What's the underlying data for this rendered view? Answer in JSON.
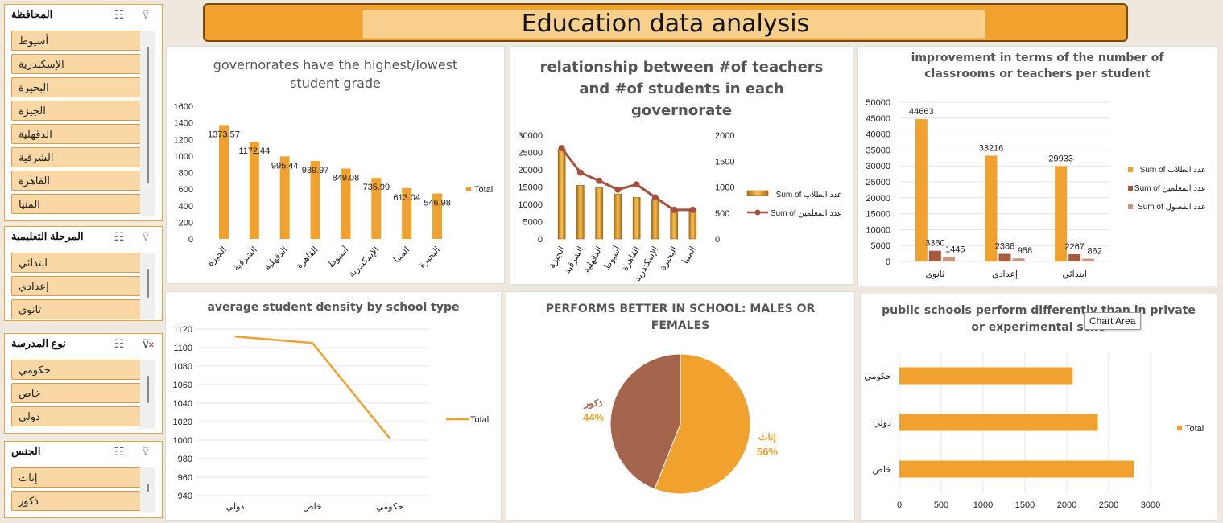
{
  "dashboard": {
    "title": "Education data analysis"
  },
  "slicers": [
    {
      "title": "المحافظة",
      "items": [
        "أسيوط",
        "الإسكندرية",
        "البحيرة",
        "الجيزة",
        "الدقهلية",
        "الشرقية",
        "القاهرة",
        "المنيا"
      ]
    },
    {
      "title": "المرحلة التعليمية",
      "items": [
        "ابتدائي",
        "إعدادي",
        "ثانوي"
      ]
    },
    {
      "title": "نوع المدرسة",
      "items": [
        "حكومي",
        "خاص",
        "دولي"
      ],
      "filter_active": true
    },
    {
      "title": "الجنس",
      "items": [
        "إناث",
        "ذكور"
      ]
    }
  ],
  "tooltip": {
    "text": "Chart Area"
  },
  "charts": {
    "grades": {
      "title_line1": "governorates have the highest/lowest",
      "title_line2": "student grade",
      "legend": "Total",
      "y_ticks": [
        "0",
        "200",
        "400",
        "600",
        "800",
        "1000",
        "1200",
        "1400",
        "1600"
      ]
    },
    "teachers": {
      "title_line1": "relationship between #of teachers",
      "title_line2": "and #of students in each",
      "title_line3": "governorate",
      "legend_students": "Sum of عدد الطلاب",
      "legend_teachers": "Sum of عدد المعلمين",
      "y_left_ticks": [
        "0",
        "5000",
        "10000",
        "15000",
        "20000",
        "25000",
        "30000"
      ],
      "y_right_ticks": [
        "0",
        "500",
        "1000",
        "1500",
        "2000"
      ]
    },
    "classrooms": {
      "title_line1": "improvement in terms of the number of",
      "title_line2": "classrooms or teachers per student",
      "legend1": "Sum of عدد الطلاب",
      "legend2": "Sum of عدد المعلمين",
      "legend3": "Sum of عدد الفصول",
      "y_ticks": [
        "0",
        "5000",
        "10000",
        "15000",
        "20000",
        "25000",
        "30000",
        "35000",
        "40000",
        "45000",
        "50000"
      ]
    },
    "density": {
      "title": "average student density by school type",
      "legend": "Total",
      "y_ticks": [
        "940",
        "960",
        "980",
        "1000",
        "1020",
        "1040",
        "1060",
        "1080",
        "1100",
        "1120"
      ]
    },
    "gender": {
      "title_line1": "PERFORMS BETTER IN SCHOOL: MALES OR",
      "title_line2": "FEMALES",
      "label_male": "ذكور",
      "pct_male": "44%",
      "label_female": "إناث",
      "pct_female": "56%"
    },
    "schooltype": {
      "title_line1": "public schools perform differently than in private",
      "title_line2": "or experimental scho",
      "legend": "Total",
      "x_ticks": [
        "0",
        "500",
        "1000",
        "1500",
        "2000",
        "2500",
        "3000"
      ]
    }
  },
  "chart_data": [
    {
      "type": "bar",
      "title": "governorates have the highest/lowest student grade",
      "categories": [
        "الجيزة",
        "الشرقية",
        "الدقهلية",
        "القاهرة",
        "أسيوط",
        "الإسكندرية",
        "المنيا",
        "البحيرة"
      ],
      "values": [
        1373.57,
        1172.44,
        995.44,
        939.97,
        849.08,
        735.99,
        613.04,
        546.98
      ],
      "value_labels": [
        "1373.57",
        "1172.44",
        "995.44",
        "939.97",
        "849.08",
        "735.99",
        "613.04",
        "546.98"
      ],
      "ylim": [
        0,
        1600
      ],
      "series_name": "Total",
      "color": "#f0a12e",
      "legend": "right"
    },
    {
      "type": "bar",
      "title": "relationship between #of teachers and #of students in each governorate",
      "categories": [
        "الجيزة",
        "الشرقية",
        "الدقهلية",
        "أسيوط",
        "القاهرة",
        "الإسكندرية",
        "البحيرة",
        "المنيا"
      ],
      "series": [
        {
          "name": "Sum of عدد الطلاب",
          "values": [
            26000,
            15500,
            14800,
            13000,
            12000,
            11500,
            8500,
            8500
          ],
          "axis": "left"
        },
        {
          "name": "Sum of عدد المعلمين",
          "values": [
            1750,
            1280,
            1120,
            950,
            1050,
            800,
            560,
            560
          ],
          "axis": "right",
          "type": "line"
        }
      ],
      "ylim": [
        0,
        30000
      ],
      "y2lim": [
        0,
        2000
      ],
      "legend": "right"
    },
    {
      "type": "bar",
      "title": "improvement in terms of the number of classrooms or teachers per student",
      "categories": [
        "ثانوي",
        "إعدادي",
        "ابتدائي"
      ],
      "series": [
        {
          "name": "Sum of عدد الطلاب",
          "values": [
            44663,
            33216,
            29933
          ],
          "color": "#f0a12e"
        },
        {
          "name": "Sum of عدد المعلمين",
          "values": [
            3360,
            2388,
            2267
          ],
          "color": "#a85a3e"
        },
        {
          "name": "Sum of عدد الفصول",
          "values": [
            1445,
            958,
            862
          ],
          "color": "#c79580"
        }
      ],
      "value_labels": [
        [
          "44663",
          "33216",
          "29933"
        ],
        [
          "3360",
          "2388",
          "2267"
        ],
        [
          "1445",
          "958",
          "862"
        ]
      ],
      "ylim": [
        0,
        50000
      ],
      "legend": "right"
    },
    {
      "type": "line",
      "title": "average student density by school type",
      "categories": [
        "دولي",
        "خاص",
        "حكومي"
      ],
      "values": [
        1112,
        1105,
        1002
      ],
      "ylim": [
        940,
        1120
      ],
      "series_name": "Total",
      "color": "#f0a12e",
      "legend": "right"
    },
    {
      "type": "pie",
      "title": "PERFORMS BETTER IN SCHOOL: MALES OR FEMALES",
      "labels": [
        "إناث",
        "ذكور"
      ],
      "values": [
        56,
        44
      ],
      "colors": [
        "#f0a12e",
        "#a5644c"
      ]
    },
    {
      "type": "bar",
      "orientation": "horizontal",
      "title": "public schools perform differently than in private or experimental scho",
      "categories": [
        "حكومي",
        "دولي",
        "خاص"
      ],
      "values": [
        2070,
        2370,
        2800
      ],
      "xlim": [
        0,
        3000
      ],
      "series_name": "Total",
      "color": "#f0a12e",
      "legend": "right"
    }
  ]
}
